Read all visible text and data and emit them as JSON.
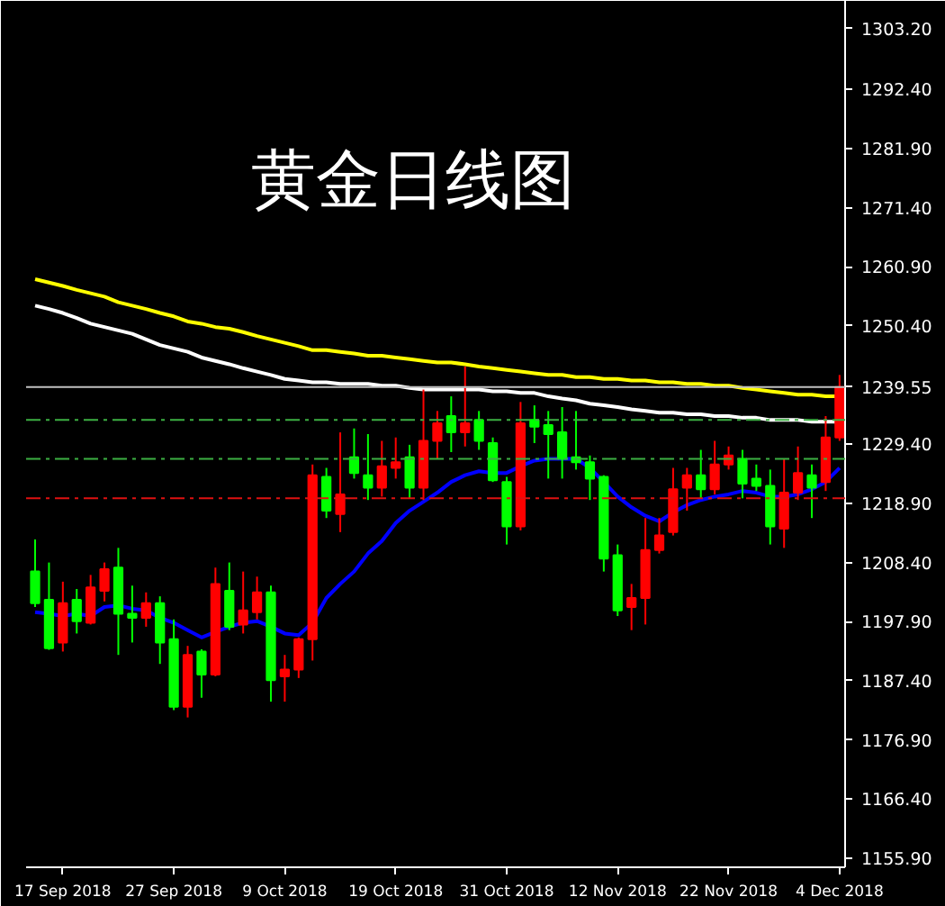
{
  "chart_data": {
    "type": "candlestick",
    "title": "黄金日线图",
    "categories": [
      null,
      null,
      "17 Sep 2018",
      null,
      null,
      null,
      null,
      null,
      null,
      null,
      "27 Sep 2018",
      null,
      null,
      null,
      null,
      null,
      null,
      null,
      "9 Oct 2018",
      null,
      null,
      null,
      null,
      null,
      null,
      null,
      "19 Oct 2018",
      null,
      null,
      null,
      null,
      null,
      null,
      null,
      "31 Oct 2018",
      null,
      null,
      null,
      null,
      null,
      null,
      null,
      "12 Nov 2018",
      null,
      null,
      null,
      null,
      null,
      null,
      null,
      "22 Nov 2018",
      null,
      null,
      null,
      null,
      null,
      null,
      null,
      "4 Dec 2018"
    ],
    "ohlc": [
      [
        1206.8,
        1212.5,
        1200.5,
        1201.2
      ],
      [
        1201.8,
        1208.4,
        1192.9,
        1193.2
      ],
      [
        1194.2,
        1205.0,
        1192.6,
        1201.2
      ],
      [
        1201.8,
        1203.7,
        1195.8,
        1198.0
      ],
      [
        1197.7,
        1206.2,
        1197.4,
        1204.0
      ],
      [
        1203.4,
        1208.4,
        1201.5,
        1207.2
      ],
      [
        1207.5,
        1211.0,
        1192.0,
        1199.3
      ],
      [
        1199.3,
        1204.3,
        1194.2,
        1198.6
      ],
      [
        1198.6,
        1203.1,
        1197.0,
        1201.2
      ],
      [
        1201.2,
        1202.4,
        1190.4,
        1194.2
      ],
      [
        1194.8,
        1198.3,
        1182.2,
        1182.8
      ],
      [
        1182.8,
        1193.6,
        1180.9,
        1192.0
      ],
      [
        1192.6,
        1193.0,
        1184.4,
        1188.5
      ],
      [
        1188.5,
        1207.5,
        1188.2,
        1204.6
      ],
      [
        1203.4,
        1208.4,
        1196.4,
        1197.0
      ],
      [
        1197.4,
        1206.8,
        1195.8,
        1199.9
      ],
      [
        1199.6,
        1205.9,
        1198.3,
        1203.1
      ],
      [
        1203.1,
        1204.3,
        1183.7,
        1187.5
      ],
      [
        1188.2,
        1192.0,
        1183.7,
        1189.4
      ],
      [
        1189.4,
        1195.1,
        1187.9,
        1194.8
      ],
      [
        1194.8,
        1225.8,
        1191.0,
        1223.9
      ],
      [
        1223.6,
        1225.2,
        1216.3,
        1217.6
      ],
      [
        1217.0,
        1231.5,
        1213.8,
        1220.5
      ],
      [
        1227.1,
        1232.2,
        1223.3,
        1224.3
      ],
      [
        1223.9,
        1231.2,
        1219.5,
        1221.7
      ],
      [
        1221.7,
        1230.0,
        1220.1,
        1225.5
      ],
      [
        1225.2,
        1230.6,
        1223.3,
        1226.2
      ],
      [
        1227.1,
        1229.3,
        1219.8,
        1221.7
      ],
      [
        1221.7,
        1239.1,
        1219.5,
        1230.0
      ],
      [
        1230.0,
        1235.3,
        1226.8,
        1233.1
      ],
      [
        1234.4,
        1237.9,
        1228.0,
        1231.5
      ],
      [
        1231.5,
        1243.2,
        1229.0,
        1233.1
      ],
      [
        1233.7,
        1235.3,
        1228.4,
        1230.0
      ],
      [
        1229.6,
        1230.6,
        1222.7,
        1223.0
      ],
      [
        1222.7,
        1223.6,
        1211.6,
        1214.8
      ],
      [
        1214.8,
        1236.9,
        1214.1,
        1233.1
      ],
      [
        1233.7,
        1236.3,
        1229.6,
        1232.5
      ],
      [
        1232.8,
        1235.3,
        1223.3,
        1231.2
      ],
      [
        1231.5,
        1236.0,
        1223.3,
        1226.8
      ],
      [
        1227.1,
        1235.3,
        1224.9,
        1226.2
      ],
      [
        1226.2,
        1227.4,
        1219.5,
        1223.3
      ],
      [
        1223.6,
        1223.9,
        1206.8,
        1209.1
      ],
      [
        1209.7,
        1211.6,
        1198.9,
        1199.9
      ],
      [
        1200.5,
        1204.6,
        1196.4,
        1202.1
      ],
      [
        1202.1,
        1216.3,
        1197.4,
        1210.6
      ],
      [
        1210.6,
        1216.3,
        1210.0,
        1213.2
      ],
      [
        1213.8,
        1225.2,
        1213.2,
        1221.4
      ],
      [
        1221.7,
        1225.2,
        1217.6,
        1223.9
      ],
      [
        1223.9,
        1228.4,
        1219.8,
        1221.4
      ],
      [
        1221.4,
        1230.0,
        1220.5,
        1225.8
      ],
      [
        1225.8,
        1229.0,
        1224.9,
        1227.4
      ],
      [
        1226.8,
        1228.4,
        1219.8,
        1222.4
      ],
      [
        1223.3,
        1225.8,
        1221.1,
        1222.0
      ],
      [
        1222.0,
        1224.9,
        1211.6,
        1214.8
      ],
      [
        1214.4,
        1226.8,
        1211.0,
        1220.8
      ],
      [
        1220.8,
        1229.0,
        1219.5,
        1224.3
      ],
      [
        1223.9,
        1225.8,
        1216.3,
        1221.7
      ],
      [
        1222.7,
        1234.4,
        1221.1,
        1230.6
      ],
      [
        1230.6,
        1241.7,
        1230.0,
        1239.55
      ]
    ],
    "colors": [
      "#00ff00",
      "#00ff00",
      "#ff0000",
      "#00ff00",
      "#ff0000",
      "#ff0000",
      "#00ff00",
      "#00ff00",
      "#ff0000",
      "#00ff00",
      "#00ff00",
      "#ff0000",
      "#00ff00",
      "#ff0000",
      "#00ff00",
      "#ff0000",
      "#ff0000",
      "#00ff00",
      "#ff0000",
      "#ff0000",
      "#ff0000",
      "#00ff00",
      "#ff0000",
      "#00ff00",
      "#00ff00",
      "#ff0000",
      "#ff0000",
      "#00ff00",
      "#ff0000",
      "#ff0000",
      "#00ff00",
      "#ff0000",
      "#00ff00",
      "#00ff00",
      "#00ff00",
      "#ff0000",
      "#00ff00",
      "#00ff00",
      "#00ff00",
      "#00ff00",
      "#00ff00",
      "#00ff00",
      "#00ff00",
      "#ff0000",
      "#ff0000",
      "#ff0000",
      "#ff0000",
      "#ff0000",
      "#00ff00",
      "#ff0000",
      "#ff0000",
      "#00ff00",
      "#00ff00",
      "#00ff00",
      "#ff0000",
      "#ff0000",
      "#00ff00",
      "#ff0000",
      "#ff0000"
    ],
    "series": [
      {
        "type": "line",
        "color": "#ffff00",
        "values": [
          1258.7,
          1258.1,
          1257.5,
          1256.8,
          1256.2,
          1255.6,
          1254.6,
          1254.0,
          1253.4,
          1252.7,
          1252.1,
          1251.2,
          1250.8,
          1250.2,
          1249.9,
          1249.3,
          1248.6,
          1248.0,
          1247.4,
          1246.8,
          1246.1,
          1246.1,
          1245.8,
          1245.5,
          1245.1,
          1245.1,
          1244.8,
          1244.5,
          1244.2,
          1243.9,
          1243.9,
          1243.6,
          1243.2,
          1242.9,
          1242.6,
          1242.3,
          1242.0,
          1241.7,
          1241.7,
          1241.3,
          1241.3,
          1241.0,
          1241.0,
          1240.7,
          1240.7,
          1240.4,
          1240.4,
          1240.1,
          1240.1,
          1239.8,
          1239.8,
          1239.4,
          1239.1,
          1238.8,
          1238.5,
          1238.2,
          1238.2,
          1237.9,
          1237.9
        ]
      },
      {
        "type": "line",
        "color": "#ffffff",
        "values": [
          1254.0,
          1253.4,
          1252.7,
          1251.8,
          1250.8,
          1250.2,
          1249.6,
          1249.0,
          1248.0,
          1247.0,
          1246.4,
          1245.8,
          1244.8,
          1244.2,
          1243.6,
          1242.9,
          1242.3,
          1241.7,
          1241.0,
          1240.7,
          1240.4,
          1240.4,
          1240.1,
          1240.1,
          1240.1,
          1239.8,
          1239.8,
          1239.4,
          1239.1,
          1239.1,
          1239.1,
          1239.1,
          1239.1,
          1238.8,
          1238.8,
          1238.5,
          1238.5,
          1237.9,
          1237.5,
          1237.2,
          1236.6,
          1236.3,
          1236.0,
          1235.6,
          1235.3,
          1235.0,
          1235.0,
          1234.7,
          1234.7,
          1234.4,
          1234.4,
          1234.1,
          1234.1,
          1233.7,
          1233.7,
          1233.7,
          1233.4,
          1233.4,
          1233.4
        ]
      },
      {
        "type": "line",
        "color": "#0000ff",
        "values": [
          1199.6,
          1199.3,
          1198.9,
          1199.3,
          1198.9,
          1200.5,
          1200.8,
          1200.2,
          1199.9,
          1198.6,
          1197.7,
          1196.4,
          1195.1,
          1196.1,
          1197.0,
          1197.7,
          1198.0,
          1197.0,
          1195.8,
          1195.5,
          1197.7,
          1202.1,
          1204.6,
          1206.8,
          1210.0,
          1212.2,
          1215.4,
          1217.6,
          1219.2,
          1220.8,
          1222.7,
          1223.9,
          1224.6,
          1224.3,
          1224.3,
          1225.5,
          1226.5,
          1226.8,
          1226.8,
          1226.8,
          1225.2,
          1222.7,
          1220.1,
          1218.2,
          1216.7,
          1215.7,
          1217.3,
          1218.6,
          1219.5,
          1220.1,
          1220.5,
          1221.1,
          1220.8,
          1220.1,
          1220.1,
          1220.5,
          1221.4,
          1222.7,
          1225.2
        ]
      }
    ],
    "ylim": [
      1154.3,
      1308.1
    ],
    "yticks": [
      {
        "value": 1303.2,
        "label": "1303.20"
      },
      {
        "value": 1292.4,
        "label": "1292.40"
      },
      {
        "value": 1281.9,
        "label": "1281.90"
      },
      {
        "value": 1271.4,
        "label": "1271.40"
      },
      {
        "value": 1260.9,
        "label": "1260.90"
      },
      {
        "value": 1250.4,
        "label": "1250.40"
      },
      {
        "value": 1229.4,
        "label": "1229.40"
      },
      {
        "value": 1218.9,
        "label": "1218.90"
      },
      {
        "value": 1208.4,
        "label": "1208.40"
      },
      {
        "value": 1197.9,
        "label": "1197.90"
      },
      {
        "value": 1187.4,
        "label": "1187.40"
      },
      {
        "value": 1176.9,
        "label": "1176.90"
      },
      {
        "value": 1166.4,
        "label": "1166.40"
      },
      {
        "value": 1155.9,
        "label": "1155.90"
      }
    ],
    "ref_lines": [
      {
        "axis": "y",
        "value": 1239.55,
        "label": "1239.55",
        "color": "#c0c0c0",
        "line_style": "solid"
      },
      {
        "axis": "y",
        "value": 1233.7,
        "color": "#3cb043",
        "line_style": "dashed"
      },
      {
        "axis": "y",
        "value": 1226.8,
        "color": "#3cb043",
        "line_style": "dashed"
      },
      {
        "axis": "y",
        "value": 1219.8,
        "color": "#dd1111",
        "line_style": "dashed"
      }
    ],
    "grid": false
  }
}
